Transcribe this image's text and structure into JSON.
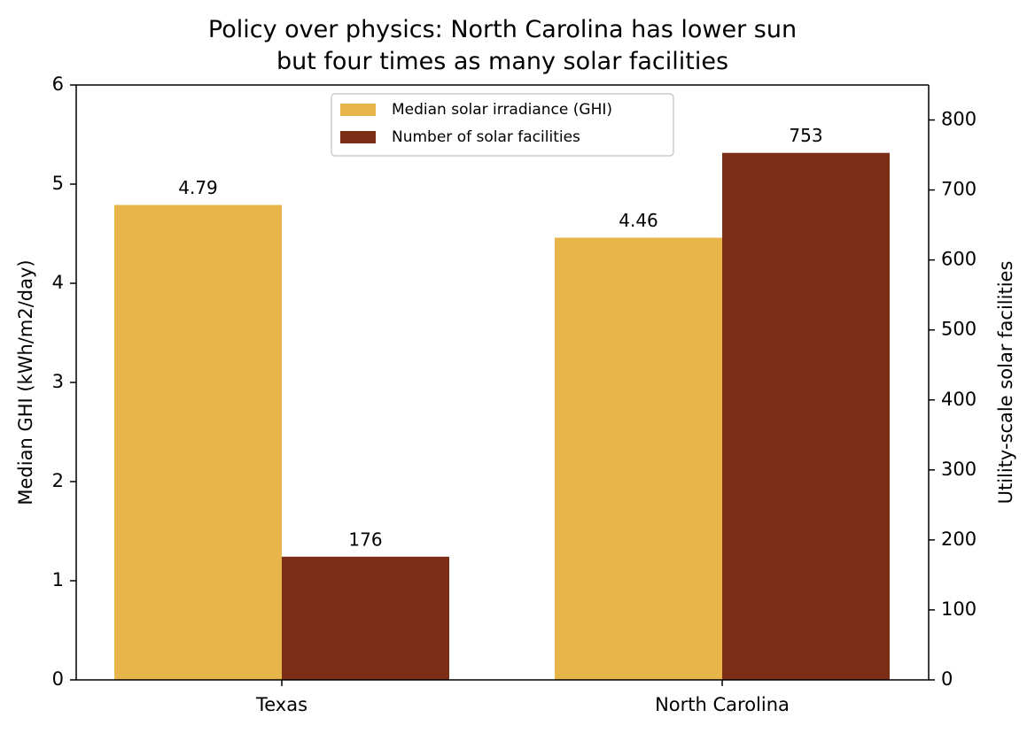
{
  "chart_data": {
    "type": "bar",
    "title": "Policy over physics: North Carolina has lower sun\nbut four times as many solar facilities",
    "ylabel": "Median GHI (kWh/m2/day)",
    "y2label": "Utility-scale solar facilities",
    "categories": [
      "Texas",
      "North Carolina"
    ],
    "series": [
      {
        "name": "Median solar irradiance (GHI)",
        "color": "#E8B54A",
        "values": [
          4.79,
          4.46
        ]
      },
      {
        "name": "Number of solar facilities",
        "color": "#7B2D16",
        "values": [
          176,
          753
        ],
        "axis": "y2"
      }
    ],
    "ylim": [
      0,
      6
    ],
    "yticks": [
      0,
      1,
      2,
      3,
      4,
      5,
      6
    ],
    "y2lim": [
      0,
      850
    ],
    "y2ticks": [
      0,
      100,
      200,
      300,
      400,
      500,
      600,
      700,
      800
    ],
    "legend": "upper center",
    "grid": false
  }
}
